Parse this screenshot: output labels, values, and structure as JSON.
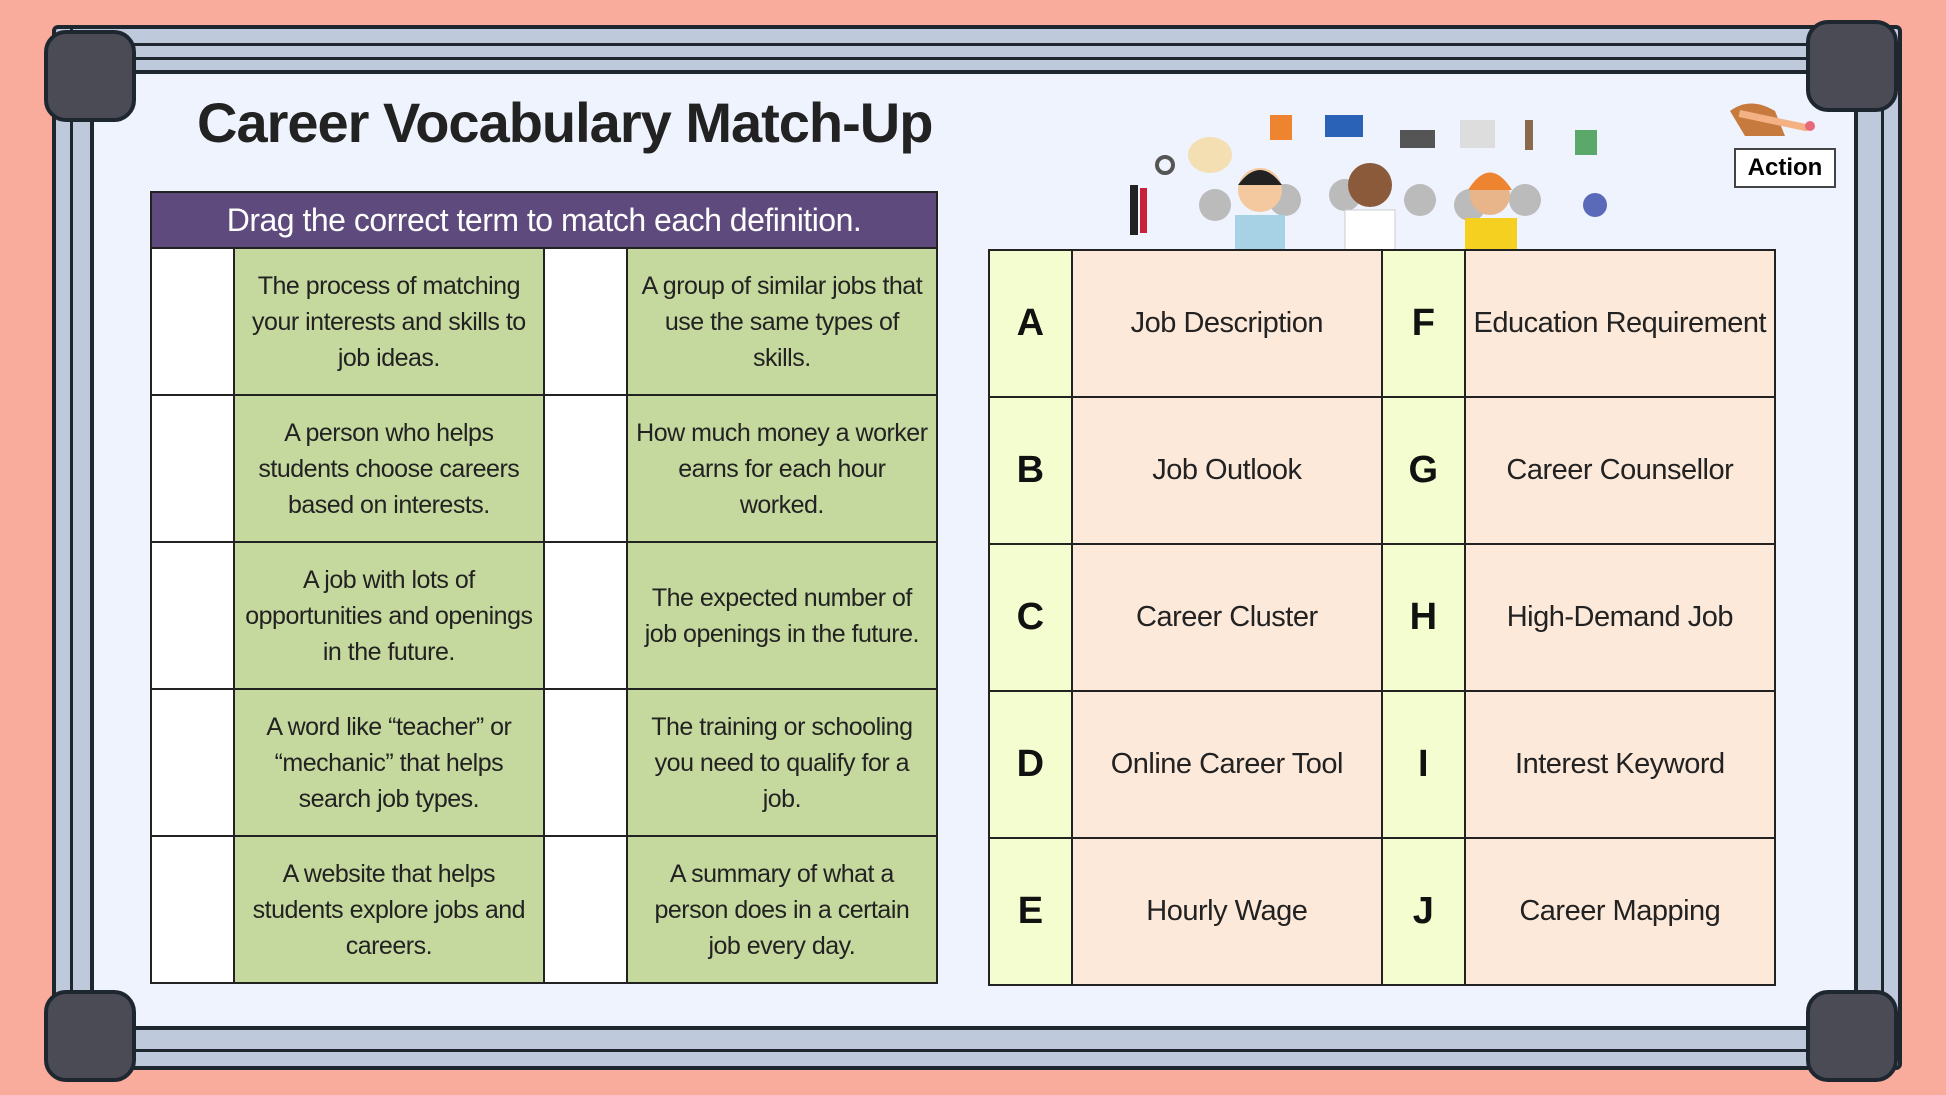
{
  "title": "Career Vocabulary Match-Up",
  "action_label": "Action",
  "instructions": "Drag the correct term to match each definition.",
  "definitions": [
    [
      "The process of matching your interests and skills to job ideas.",
      "A group of similar jobs that use the same types of skills."
    ],
    [
      "A person who helps students choose careers based on interests.",
      "How much money a worker earns for each hour worked."
    ],
    [
      "A job with lots of opportunities and openings in the future.",
      "The expected number of job openings in the future."
    ],
    [
      "A word like “teacher” or “mechanic” that helps search job types.",
      "The training or schooling you need to qualify for a job."
    ],
    [
      "A website that helps students explore jobs and careers.",
      "A summary of what a person does in a certain job every day."
    ]
  ],
  "terms": [
    [
      {
        "letter": "A",
        "term": "Job Description"
      },
      {
        "letter": "F",
        "term": "Education Requirement"
      }
    ],
    [
      {
        "letter": "B",
        "term": "Job Outlook"
      },
      {
        "letter": "G",
        "term": "Career Counsellor"
      }
    ],
    [
      {
        "letter": "C",
        "term": "Career Cluster"
      },
      {
        "letter": "H",
        "term": "High-Demand Job"
      }
    ],
    [
      {
        "letter": "D",
        "term": "Online Career Tool"
      },
      {
        "letter": "I",
        "term": "Interest Keyword"
      }
    ],
    [
      {
        "letter": "E",
        "term": "Hourly Wage"
      },
      {
        "letter": "J",
        "term": "Career Mapping"
      }
    ]
  ],
  "colors": {
    "background": "#f9ab9c",
    "header": "#5e4a7c",
    "definition": "#c5d89e",
    "letter": "#f4fdd0",
    "term": "#fde9da"
  }
}
